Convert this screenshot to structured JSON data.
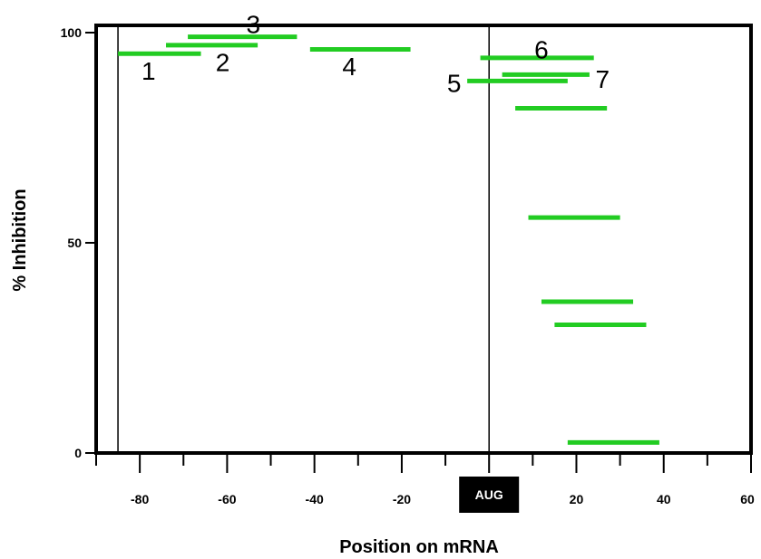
{
  "chart_data": {
    "type": "interval",
    "xlabel": "Position on mRNA",
    "ylabel": "%  Inhibition",
    "xlim": [
      -90,
      60
    ],
    "ylim": [
      0,
      100
    ],
    "x_tick_values": [
      -80,
      -60,
      -40,
      -20,
      0,
      20,
      40,
      60
    ],
    "x_tick_labels": [
      "-80",
      "-60",
      "-40",
      "-20",
      "AUG",
      "20",
      "40",
      "60"
    ],
    "y_tick_values": [
      0,
      50,
      100
    ],
    "y_tick_labels": [
      "0",
      "50",
      "100"
    ],
    "reference_lines_x": [
      -85,
      0
    ],
    "series_color": "#22cc22",
    "segments": [
      {
        "x_start": -85,
        "x_end": -66,
        "y": 95
      },
      {
        "x_start": -74,
        "x_end": -53,
        "y": 97
      },
      {
        "x_start": -69,
        "x_end": -44,
        "y": 99
      },
      {
        "x_start": -41,
        "x_end": -18,
        "y": 96
      },
      {
        "x_start": -2,
        "x_end": 24,
        "y": 94
      },
      {
        "x_start": 3,
        "x_end": 23,
        "y": 90
      },
      {
        "x_start": -5,
        "x_end": 18,
        "y": 88.5
      },
      {
        "x_start": 6,
        "x_end": 27,
        "y": 82
      },
      {
        "x_start": 9,
        "x_end": 30,
        "y": 56
      },
      {
        "x_start": 12,
        "x_end": 33,
        "y": 36
      },
      {
        "x_start": 15,
        "x_end": 36,
        "y": 30.5
      },
      {
        "x_start": 18,
        "x_end": 39,
        "y": 2.5
      }
    ],
    "annotations": [
      {
        "text": "1",
        "x": -78,
        "y": 91
      },
      {
        "text": "2",
        "x": -61,
        "y": 93
      },
      {
        "text": "3",
        "x": -54,
        "y": 102
      },
      {
        "text": "4",
        "x": -32,
        "y": 92
      },
      {
        "text": "5",
        "x": -8,
        "y": 88
      },
      {
        "text": "6",
        "x": 12,
        "y": 96
      },
      {
        "text": "7",
        "x": 26,
        "y": 89
      }
    ]
  }
}
